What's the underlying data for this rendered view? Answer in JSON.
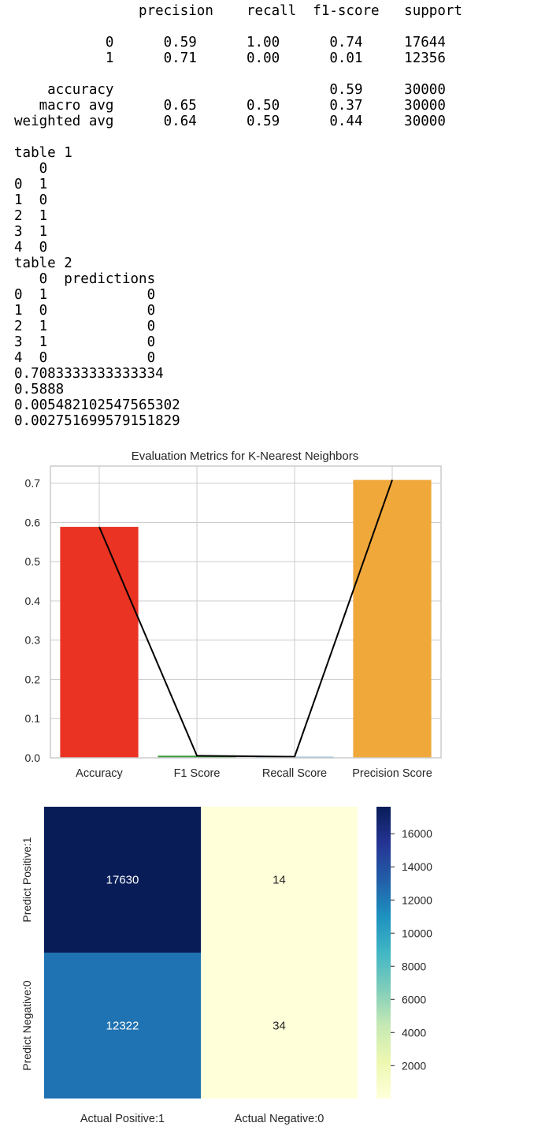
{
  "console": {
    "report": {
      "header": [
        "precision",
        "recall",
        "f1-score",
        "support"
      ],
      "rows": [
        {
          "label": "0",
          "precision": "0.59",
          "recall": "1.00",
          "f1": "0.74",
          "support": "17644"
        },
        {
          "label": "1",
          "precision": "0.71",
          "recall": "0.00",
          "f1": "0.01",
          "support": "12356"
        }
      ],
      "accuracy": {
        "label": "accuracy",
        "f1": "0.59",
        "support": "30000"
      },
      "averages": [
        {
          "label": "macro avg",
          "precision": "0.65",
          "recall": "0.50",
          "f1": "0.37",
          "support": "30000"
        },
        {
          "label": "weighted avg",
          "precision": "0.64",
          "recall": "0.59",
          "f1": "0.44",
          "support": "30000"
        }
      ]
    },
    "table1": {
      "caption": "table 1",
      "columns": [
        "0"
      ],
      "rows": [
        {
          "index": "0",
          "values": [
            "1"
          ]
        },
        {
          "index": "1",
          "values": [
            "0"
          ]
        },
        {
          "index": "2",
          "values": [
            "1"
          ]
        },
        {
          "index": "3",
          "values": [
            "1"
          ]
        },
        {
          "index": "4",
          "values": [
            "0"
          ]
        }
      ]
    },
    "table2": {
      "caption": "table 2",
      "columns": [
        "0",
        "predictions"
      ],
      "rows": [
        {
          "index": "0",
          "values": [
            "1",
            "0"
          ]
        },
        {
          "index": "1",
          "values": [
            "0",
            "0"
          ]
        },
        {
          "index": "2",
          "values": [
            "1",
            "0"
          ]
        },
        {
          "index": "3",
          "values": [
            "1",
            "0"
          ]
        },
        {
          "index": "4",
          "values": [
            "0",
            "0"
          ]
        }
      ]
    },
    "scores": [
      "0.7083333333333334",
      "0.5888",
      "0.005482102547565302",
      "0.002751699579151829"
    ]
  },
  "chart_data": [
    {
      "type": "bar",
      "title": "Evaluation Metrics for K-Nearest Neighbors",
      "categories": [
        "Accuracy",
        "F1 Score",
        "Recall Score",
        "Precision Score"
      ],
      "values": [
        0.5888,
        0.005482102547565302,
        0.002751699579151829,
        0.7083333333333334
      ],
      "colors": [
        "#ea3323",
        "#3a9a3a",
        "#6baed6",
        "#f0a83a"
      ],
      "overlay_line": {
        "type": "line",
        "color": "#000000",
        "values": [
          0.5888,
          0.005482102547565302,
          0.002751699579151829,
          0.7083333333333334
        ]
      },
      "yticks": [
        0.0,
        0.1,
        0.2,
        0.3,
        0.4,
        0.5,
        0.6,
        0.7
      ],
      "ylim": [
        0,
        0.7437
      ],
      "grid": true
    },
    {
      "type": "heatmap",
      "rows": [
        "Predict Positive:1",
        "Predict Negative:0"
      ],
      "columns": [
        "Actual Positive:1",
        "Actual Negative:0"
      ],
      "values": [
        [
          17630,
          14
        ],
        [
          12322,
          34
        ]
      ],
      "colormap": "YlGnBu",
      "vmin": 14,
      "vmax": 17630,
      "colorbar_ticks": [
        2000,
        4000,
        6000,
        8000,
        10000,
        12000,
        14000,
        16000
      ]
    }
  ]
}
